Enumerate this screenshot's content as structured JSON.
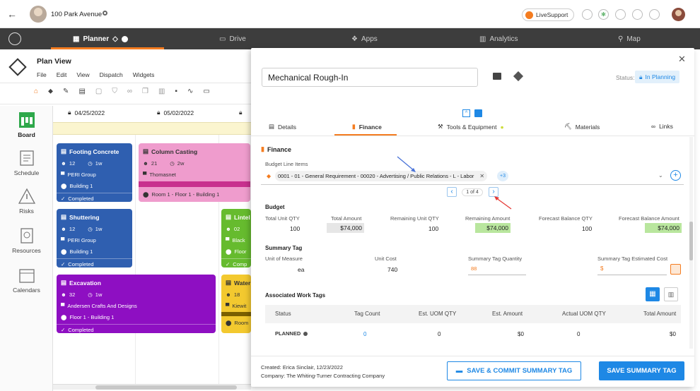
{
  "topbar": {
    "address": "100 Park Avenue",
    "livesupport_label": "LiveSupport"
  },
  "nav": {
    "items": [
      {
        "label": "Planner",
        "icon": "planner-icon"
      },
      {
        "label": "Drive",
        "icon": "drive-icon"
      },
      {
        "label": "Apps",
        "icon": "apps-icon"
      },
      {
        "label": "Analytics",
        "icon": "analytics-icon"
      },
      {
        "label": "Map",
        "icon": "map-icon"
      }
    ]
  },
  "planview": {
    "title": "Plan View",
    "menu": [
      "File",
      "Edit",
      "View",
      "Dispatch",
      "Widgets"
    ]
  },
  "timeline": {
    "dates": [
      "04/25/2022",
      "05/02/2022"
    ]
  },
  "sidebar": {
    "items": [
      {
        "label": "Board"
      },
      {
        "label": "Schedule"
      },
      {
        "label": "Risks"
      },
      {
        "label": "Resources"
      },
      {
        "label": "Calendars"
      }
    ]
  },
  "cards": {
    "footing": {
      "title": "Footing Concrete",
      "crew": "12",
      "duration": "1w",
      "company": "PERI Group",
      "location": "Building 1",
      "status": "Completed"
    },
    "column": {
      "title": "Column Casting",
      "crew": "21",
      "duration": "2w",
      "company": "Thomasnet",
      "location": "Room 1 - Floor 1 - Building 1"
    },
    "shuttering": {
      "title": "Shuttering",
      "crew": "12",
      "duration": "1w",
      "company": "PERI Group",
      "location": "Building 1",
      "status": "Completed"
    },
    "lintel": {
      "title": "Lintel",
      "crew": "02",
      "company": "Black",
      "location": "Floor",
      "status": "Comp"
    },
    "excavation": {
      "title": "Excavation",
      "crew": "32",
      "duration": "1w",
      "company": "Andersen Crafts And Designs",
      "location": "Floor 1 - Building 1",
      "status": "Completed"
    },
    "water": {
      "title": "Water",
      "crew": "18",
      "company": "Kiewit",
      "location": "Room"
    }
  },
  "panel": {
    "task_name": "Mechanical Rough-In",
    "status_label": "Status:",
    "status_value": "In Planning",
    "tabs": [
      "Details",
      "Finance",
      "Tools & Equipment",
      "Materials",
      "Links"
    ],
    "section_title": "Finance",
    "budget_line_label": "Budget Line Items",
    "budget_chip": "0001 - 01 - General Requirement - 00020 - Advertising / Public Relations - L - Labor",
    "more_count": "+3",
    "pager": "1 of 4",
    "budget_heading": "Budget",
    "budget_cols": [
      "Total Unit QTY",
      "Total Amount",
      "Remaining Unit QTY",
      "Remaining Amount",
      "Forecast Balance QTY",
      "Forecast Balance Amount"
    ],
    "budget_vals": [
      "100",
      "$74,000",
      "100",
      "$74,000",
      "100",
      "$74,000"
    ],
    "summary_heading": "Summary Tag",
    "summary_cols": [
      "Unit of Measure",
      "Unit Cost",
      "Summary Tag Quantity",
      "Summary Tag Estimated Cost"
    ],
    "unit_of_measure": "ea",
    "unit_cost": "740",
    "tag_qty_placeholder": "88",
    "est_cost_prefix": "$",
    "assoc_heading": "Associated Work Tags",
    "table_headers": [
      "Status",
      "Tag Count",
      "Est. UOM QTY",
      "Est. Amount",
      "Actual UOM QTY",
      "Total Amount"
    ],
    "row": {
      "status": "PLANNED",
      "tag_count": "0",
      "est_uom": "0",
      "est_amount": "$0",
      "actual_uom": "0",
      "total_amount": "$0"
    },
    "created": "Created: Erica Sinclair, 12/23/2022",
    "company": "Company: The Whiting-Turner Contracting Company",
    "commit_button": "SAVE & COMMIT SUMMARY TAG",
    "save_button": "SAVE SUMMARY TAG"
  },
  "colors": {
    "orange": "#f47c20",
    "blue": "#1e88e5",
    "green_cell": "#b9e69e",
    "card_blue": "#2f5fb0",
    "card_pink": "#ef9ccd",
    "card_purple": "#8e0fc2",
    "card_green": "#66bb2e",
    "card_yellow": "#f3c92f"
  }
}
